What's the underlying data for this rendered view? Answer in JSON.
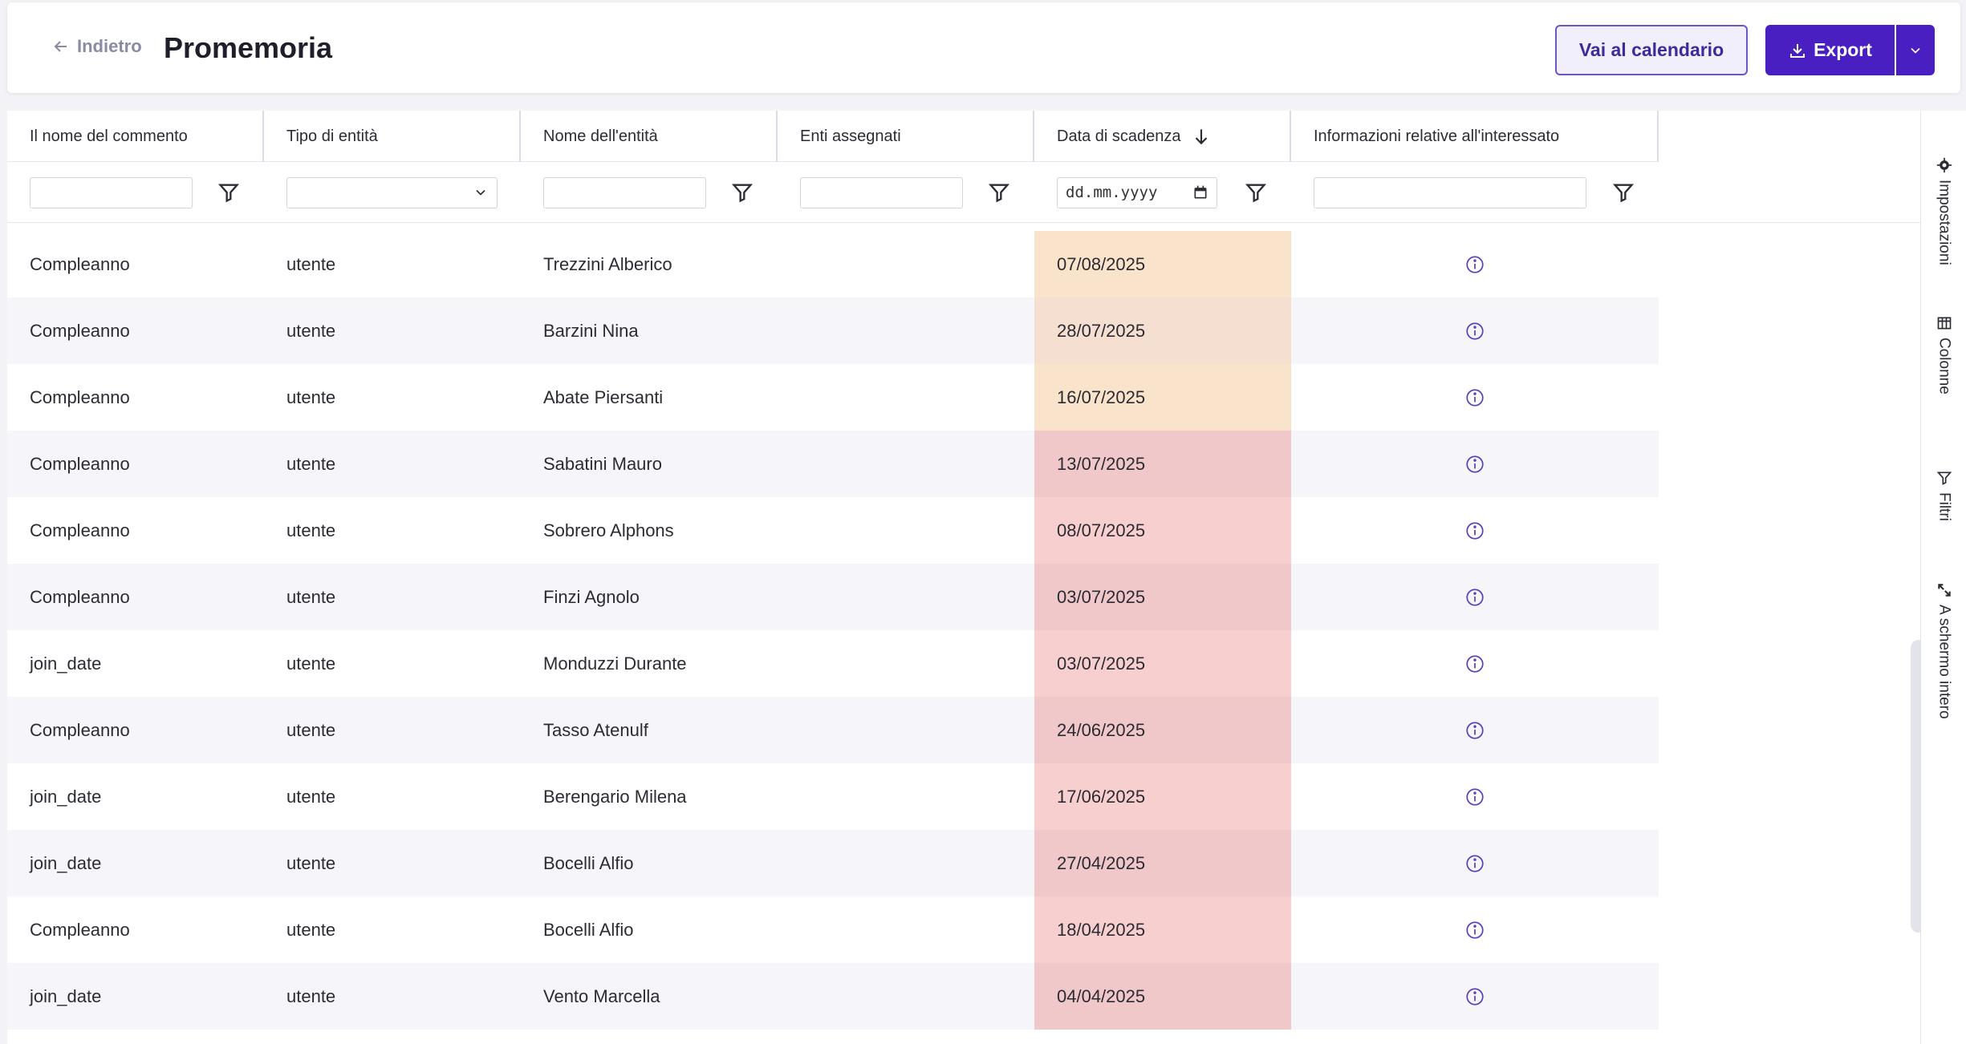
{
  "header": {
    "back_label": "Indietro",
    "title": "Promemoria",
    "calendar_button": "Vai al calendario",
    "export_button": "Export"
  },
  "columns": [
    "Il nome del commento",
    "Tipo di entità",
    "Nome dell'entità",
    "Enti assegnati",
    "Data di scadenza",
    "Informazioni relative all'interessato"
  ],
  "filters": {
    "date_placeholder": "dd.mm.yyyy"
  },
  "sort": {
    "column": "Data di scadenza",
    "direction": "descending"
  },
  "rows": [
    {
      "comment": "Compleanno",
      "type": "utente",
      "name": "Trezzini Alberico",
      "assigned": "",
      "due": "07/08/2025",
      "due_color": "#fae3cb"
    },
    {
      "comment": "Compleanno",
      "type": "utente",
      "name": "Barzini Nina",
      "assigned": "",
      "due": "28/07/2025",
      "due_color": "#f4dfd0"
    },
    {
      "comment": "Compleanno",
      "type": "utente",
      "name": "Abate Piersanti",
      "assigned": "",
      "due": "16/07/2025",
      "due_color": "#f9e3cb"
    },
    {
      "comment": "Compleanno",
      "type": "utente",
      "name": "Sabatini Mauro",
      "assigned": "",
      "due": "13/07/2025",
      "due_color": "#f1c8ca"
    },
    {
      "comment": "Compleanno",
      "type": "utente",
      "name": "Sobrero Alphons",
      "assigned": "",
      "due": "08/07/2025",
      "due_color": "#f8cfcf"
    },
    {
      "comment": "Compleanno",
      "type": "utente",
      "name": "Finzi Agnolo",
      "assigned": "",
      "due": "03/07/2025",
      "due_color": "#f1c8ca"
    },
    {
      "comment": "join_date",
      "type": "utente",
      "name": "Monduzzi Durante",
      "assigned": "",
      "due": "03/07/2025",
      "due_color": "#f8cfcf"
    },
    {
      "comment": "Compleanno",
      "type": "utente",
      "name": "Tasso Atenulf",
      "assigned": "",
      "due": "24/06/2025",
      "due_color": "#f1c8ca"
    },
    {
      "comment": "join_date",
      "type": "utente",
      "name": "Berengario Milena",
      "assigned": "",
      "due": "17/06/2025",
      "due_color": "#f8cfcf"
    },
    {
      "comment": "join_date",
      "type": "utente",
      "name": "Bocelli Alfio",
      "assigned": "",
      "due": "27/04/2025",
      "due_color": "#f1c8ca"
    },
    {
      "comment": "Compleanno",
      "type": "utente",
      "name": "Bocelli Alfio",
      "assigned": "",
      "due": "18/04/2025",
      "due_color": "#f8cfcf"
    },
    {
      "comment": "join_date",
      "type": "utente",
      "name": "Vento Marcella",
      "assigned": "",
      "due": "04/04/2025",
      "due_color": "#f1c8ca"
    }
  ],
  "side_panel": [
    {
      "label": "Impostazioni",
      "icon": "gear-icon"
    },
    {
      "label": "Colonne",
      "icon": "columns-icon"
    },
    {
      "label": "Filtri",
      "icon": "filter-icon"
    },
    {
      "label": "A schermo intero",
      "icon": "fullscreen-icon"
    }
  ],
  "colors": {
    "accent": "#4a1fc2",
    "accent_light": "#f2effc"
  }
}
